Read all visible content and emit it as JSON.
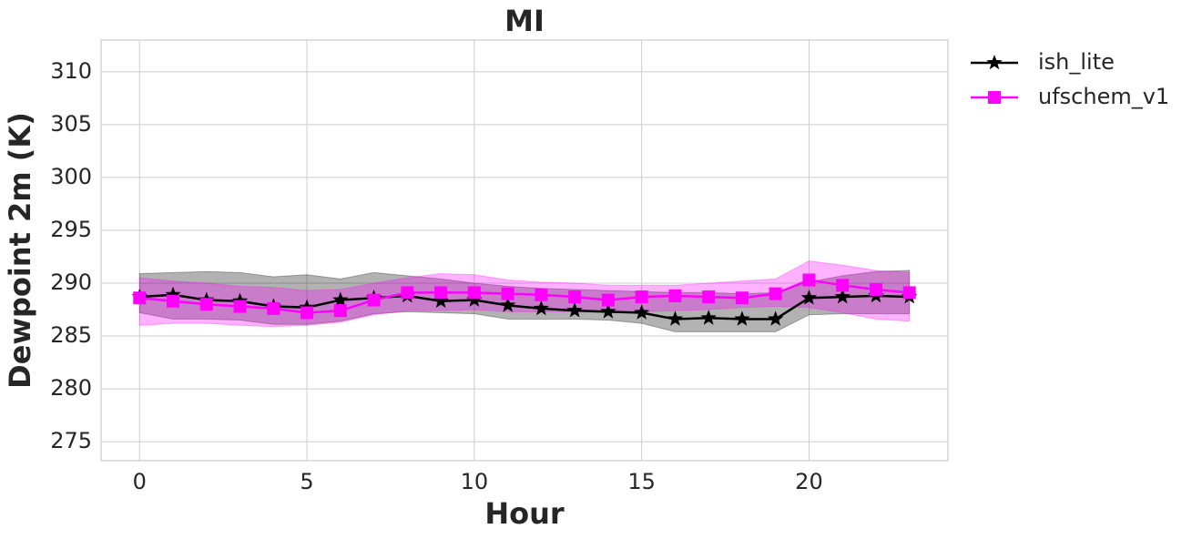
{
  "chart_data": {
    "type": "line",
    "title": "MI",
    "x_label": "Hour",
    "y_label": "Dewpoint 2m (K)",
    "x": [
      0,
      1,
      2,
      3,
      4,
      5,
      6,
      7,
      8,
      9,
      10,
      11,
      12,
      13,
      14,
      15,
      16,
      17,
      18,
      19,
      20,
      21,
      22,
      23
    ],
    "xlim": [
      -1.15,
      24.15
    ],
    "xticks": [
      0,
      5,
      10,
      15,
      20
    ],
    "ylim": [
      273.2,
      313.0
    ],
    "yticks": [
      275,
      280,
      285,
      290,
      295,
      300,
      305,
      310
    ],
    "grid": true,
    "legend": "outside upper right",
    "series": [
      {
        "name": "ish_lite",
        "color": "#000000",
        "marker": "star",
        "values": [
          288.7,
          288.9,
          288.4,
          288.3,
          287.8,
          287.7,
          288.4,
          288.6,
          288.8,
          288.3,
          288.4,
          287.9,
          287.6,
          287.4,
          287.3,
          287.2,
          286.6,
          286.7,
          286.6,
          286.6,
          288.6,
          288.7,
          288.8,
          288.7
        ],
        "upper": [
          290.9,
          291.0,
          291.1,
          291.0,
          290.6,
          290.8,
          290.4,
          291.0,
          290.7,
          290.4,
          290.0,
          289.7,
          289.5,
          289.4,
          289.3,
          289.2,
          289.1,
          289.1,
          289.0,
          289.1,
          290.1,
          290.7,
          291.1,
          291.2
        ],
        "lower": [
          287.2,
          286.6,
          286.6,
          286.5,
          286.1,
          286.1,
          286.4,
          287.1,
          287.3,
          287.2,
          287.1,
          286.6,
          286.6,
          286.6,
          286.5,
          286.2,
          285.4,
          285.4,
          285.4,
          285.4,
          287.0,
          287.1,
          287.1,
          287.1
        ]
      },
      {
        "name": "ufschem_v1",
        "color": "#ff00ff",
        "marker": "square",
        "values": [
          288.6,
          288.3,
          288.0,
          287.8,
          287.6,
          287.2,
          287.4,
          288.4,
          289.1,
          289.1,
          289.1,
          289.0,
          288.9,
          288.7,
          288.4,
          288.7,
          288.8,
          288.7,
          288.6,
          289.0,
          290.3,
          289.8,
          289.4,
          289.1
        ],
        "upper": [
          290.5,
          290.2,
          290.0,
          289.7,
          289.6,
          289.3,
          289.4,
          290.0,
          290.5,
          290.9,
          290.8,
          290.3,
          290.1,
          290.0,
          289.8,
          289.8,
          289.8,
          290.0,
          290.2,
          290.4,
          292.1,
          291.7,
          291.2,
          291.0
        ],
        "lower": [
          286.0,
          286.2,
          286.2,
          286.0,
          285.9,
          286.0,
          286.3,
          287.0,
          287.4,
          287.4,
          287.5,
          287.3,
          287.3,
          287.3,
          287.2,
          287.3,
          287.4,
          287.5,
          287.7,
          287.8,
          287.7,
          287.2,
          286.6,
          286.4
        ]
      }
    ]
  }
}
